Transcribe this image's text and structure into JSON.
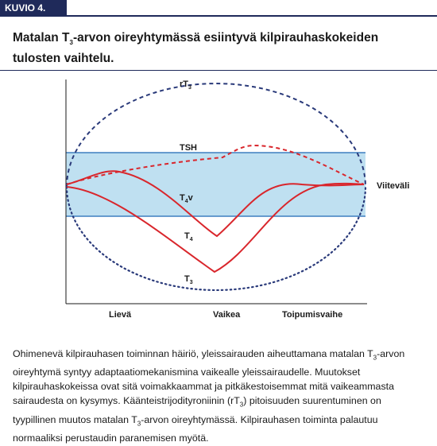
{
  "header": {
    "label": "KUVIO 4.",
    "title": [
      "Matalan T",
      "3",
      "-arvon oireyhtymässä esiintyvä kilpirauhaskokeiden tulosten vaihtelu."
    ]
  },
  "figure": {
    "curves": {
      "rt3": [
        "rT",
        "3"
      ],
      "tsh": "TSH",
      "t4v": [
        "T",
        "4",
        "v"
      ],
      "t4": [
        "T",
        "4"
      ],
      "t3": [
        "T",
        "3"
      ]
    },
    "reference": "Viiteväli",
    "phases": [
      "Lievä",
      "Vaikea",
      "Toipumisvaihe"
    ]
  },
  "caption": [
    "Ohimenevä kilpirauhasen toiminnan häiriö, yleissairauden aiheuttamana matalan T",
    "3",
    "-arvon oireyhtymä syntyy adaptaatiomekanismina vaikealle yleissairaudelle. Muutokset kilpirauhaskokeissa ovat sitä voimakkaammat ja pitkäkestoisemmat mitä vaikeammasta sairaudesta on kysymys. Käänteistrijodityroniinin (rT",
    "3",
    ") pitoisuuden suurentuminen on tyypillinen muutos matalan T",
    "3",
    "-arvon oireyhtymässä. Kilpirauhasen toiminta palautuu normaaliksi perustaudin paranemisen myötä."
  ]
}
